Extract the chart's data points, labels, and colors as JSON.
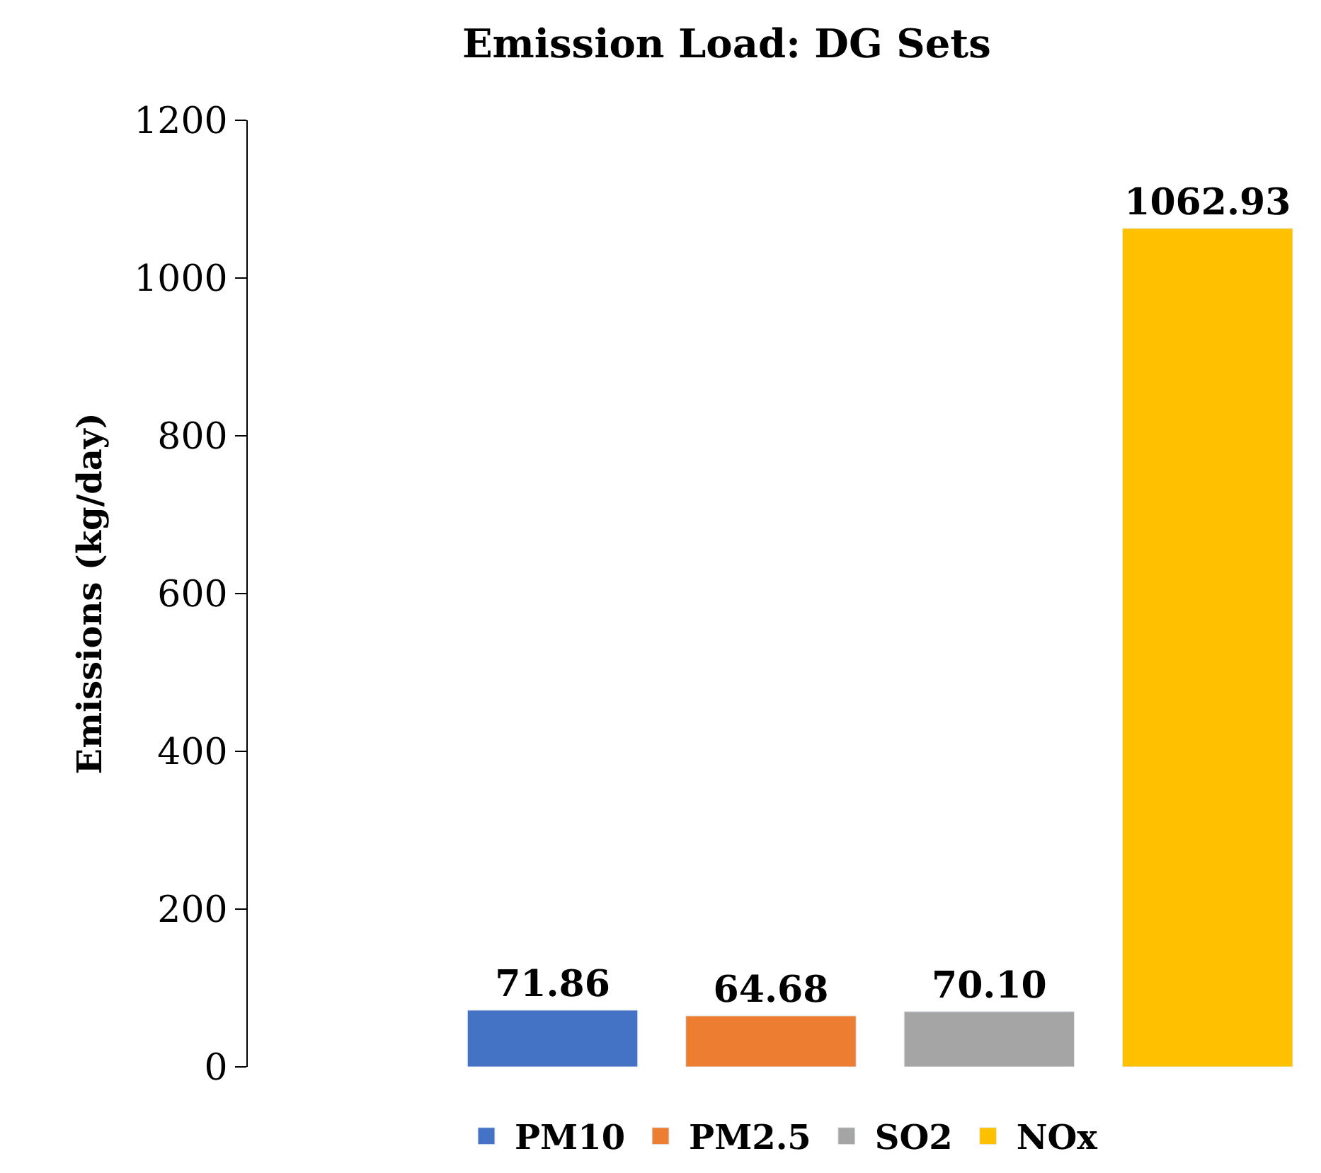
{
  "chart_data": {
    "type": "bar",
    "title": "Emission Load: DG Sets",
    "ylabel": "Emissions (kg/day)",
    "categories": [
      null
    ],
    "series": [
      {
        "name": "PM10",
        "color": "#4472c4",
        "values": [
          71.86
        ],
        "value_labels": [
          "71.86"
        ]
      },
      {
        "name": "PM2.5",
        "color": "#ed7d31",
        "values": [
          64.68
        ],
        "value_labels": [
          "64.68"
        ]
      },
      {
        "name": "SO2",
        "color": "#a5a5a5",
        "values": [
          70.1
        ],
        "value_labels": [
          "70.10"
        ]
      },
      {
        "name": "NOx",
        "color": "#ffc000",
        "values": [
          1062.93
        ],
        "value_labels": [
          "1062.93"
        ]
      }
    ],
    "ylim": [
      0,
      1200
    ],
    "yticks": [
      0,
      200,
      400,
      600,
      800,
      1000,
      1200
    ],
    "grid": false,
    "legend": "bottom"
  }
}
